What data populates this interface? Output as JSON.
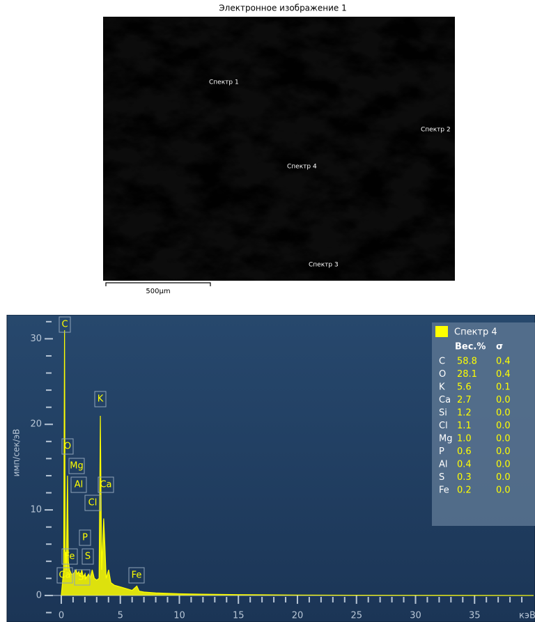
{
  "image": {
    "title": "Электронное изображение 1",
    "labels": [
      "Спектр 1",
      "Спектр 2",
      "Спектр 4",
      "Спектр 3"
    ],
    "scale_bar": "500µm"
  },
  "chart_data": {
    "type": "area",
    "x_label": "кэВ",
    "y_label": "имп/сек/эВ",
    "x": [
      0,
      0.1,
      0.2,
      0.277,
      0.33,
      0.42,
      0.525,
      0.6,
      0.7,
      0.85,
      1.0,
      1.25,
      1.35,
      1.49,
      1.6,
      1.74,
      1.85,
      2.01,
      2.1,
      2.31,
      2.45,
      2.62,
      2.8,
      3.0,
      3.2,
      3.31,
      3.42,
      3.59,
      3.69,
      3.8,
      4.01,
      4.2,
      4.5,
      5,
      6,
      6.4,
      6.6,
      7,
      8,
      10,
      12,
      15,
      20,
      25,
      30,
      40
    ],
    "series": [
      {
        "name": "Спектр 4",
        "color": "#ffff00",
        "values": [
          0,
          1.5,
          3,
          31,
          5,
          3,
          14,
          4,
          3,
          2.5,
          2.5,
          3,
          2.5,
          2.8,
          2.2,
          3,
          2.2,
          2.5,
          2,
          2.5,
          2,
          3,
          2,
          1.8,
          2,
          21,
          3,
          9,
          6,
          2,
          3,
          1.5,
          1.2,
          1,
          0.6,
          1.1,
          0.5,
          0.4,
          0.3,
          0.2,
          0.15,
          0.1,
          0.05,
          0.03,
          0.02,
          0
        ]
      }
    ],
    "xlim": [
      -0.8,
      40
    ],
    "ylim": [
      -3.1,
      32.8
    ],
    "xticks": [
      0,
      5,
      10,
      15,
      20,
      25,
      30,
      35
    ],
    "xminorticks": [
      1,
      2,
      3,
      4,
      6,
      7,
      8,
      9,
      11,
      12,
      13,
      14,
      16,
      17,
      18,
      19,
      21,
      22,
      23,
      24,
      26,
      27,
      28,
      29,
      31,
      32,
      33,
      34,
      36,
      37,
      38,
      39
    ],
    "yticks": [
      0,
      10,
      20,
      30
    ],
    "yminorticks": [
      -2,
      2,
      4,
      6,
      8,
      12,
      14,
      16,
      18,
      22,
      24,
      26,
      28,
      32
    ],
    "peak_labels": [
      "C",
      "O",
      "Mg",
      "Al",
      "Ca",
      "Cl",
      "K",
      "P",
      "Fe",
      "S",
      "Ca",
      "Si",
      "Fe"
    ],
    "legend": {
      "columns": [
        "Вес.%",
        "σ"
      ],
      "rows": [
        [
          "C",
          "58.8",
          "0.4"
        ],
        [
          "O",
          "28.1",
          "0.4"
        ],
        [
          "K",
          "5.6",
          "0.1"
        ],
        [
          "Ca",
          "2.7",
          "0.0"
        ],
        [
          "Si",
          "1.2",
          "0.0"
        ],
        [
          "Cl",
          "1.1",
          "0.0"
        ],
        [
          "Mg",
          "1.0",
          "0.0"
        ],
        [
          "P",
          "0.6",
          "0.0"
        ],
        [
          "Al",
          "0.4",
          "0.0"
        ],
        [
          "S",
          "0.3",
          "0.0"
        ],
        [
          "Fe",
          "0.2",
          "0.0"
        ]
      ]
    }
  }
}
